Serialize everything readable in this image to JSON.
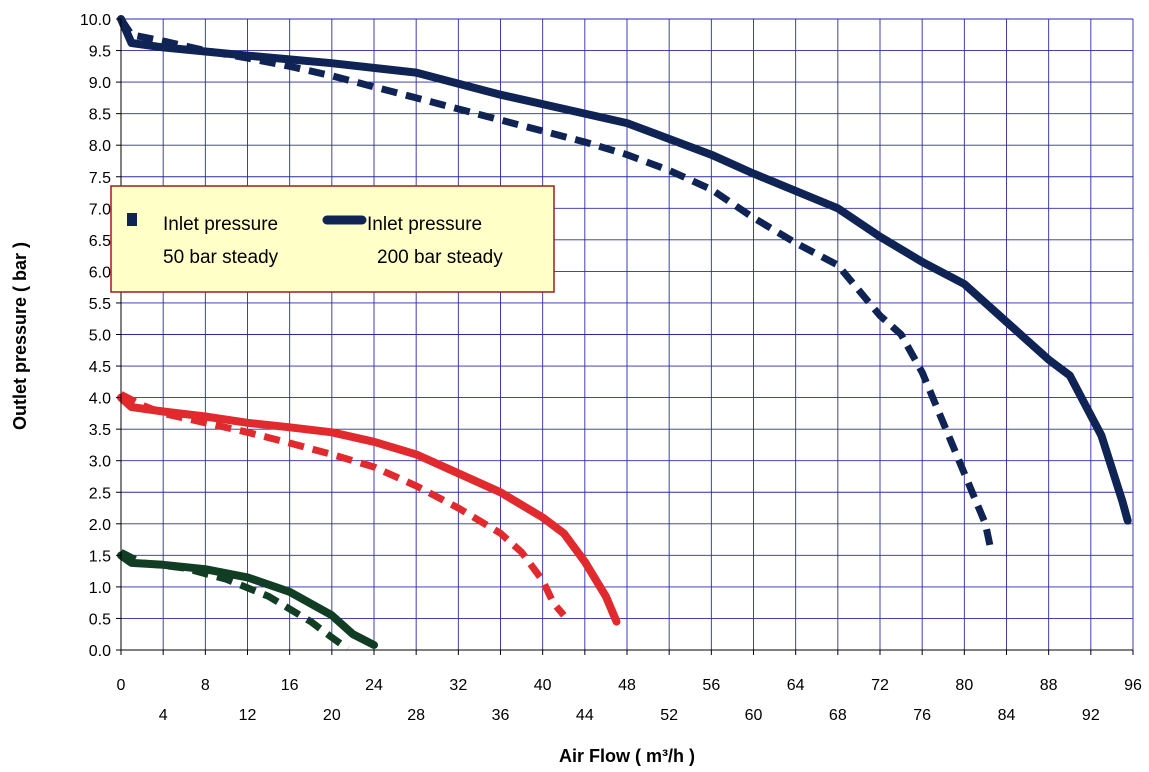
{
  "chart_data": {
    "type": "line",
    "xlabel": "Air Flow ( m³/h )",
    "ylabel": "Outlet pressure ( bar )",
    "xlim": [
      0,
      96
    ],
    "ylim": [
      0,
      10
    ],
    "grid": true,
    "x_ticks_upper": [
      "0",
      "8",
      "16",
      "24",
      "32",
      "40",
      "48",
      "56",
      "64",
      "72",
      "80",
      "88",
      "96"
    ],
    "x_ticks_lower": [
      "4",
      "12",
      "20",
      "28",
      "36",
      "44",
      "52",
      "60",
      "68",
      "76",
      "84",
      "92"
    ],
    "y_ticks": [
      "0.0",
      "0.5",
      "1.0",
      "1.5",
      "2.0",
      "2.5",
      "3.0",
      "3.5",
      "4.0",
      "4.5",
      "5.0",
      "5.5",
      "6.0",
      "6.5",
      "7.0",
      "7.5",
      "8.0",
      "8.5",
      "9.0",
      "9.5",
      "10.0"
    ],
    "legend": {
      "position": "upper-left",
      "items": [
        {
          "style": "dashed",
          "line1": "Inlet pressure",
          "line2": "50 bar steady"
        },
        {
          "style": "solid",
          "line1": "Inlet pressure",
          "line2": "200 bar steady"
        }
      ]
    },
    "series": [
      {
        "color": "#0f2454",
        "style": "solid",
        "x": [
          0,
          1,
          4,
          12,
          20,
          28,
          36,
          44,
          48,
          56,
          60,
          68,
          72,
          76,
          80,
          84,
          88,
          90,
          93,
          95,
          95.5
        ],
        "y": [
          10.0,
          9.62,
          9.55,
          9.42,
          9.3,
          9.15,
          8.8,
          8.5,
          8.35,
          7.85,
          7.55,
          7.0,
          6.55,
          6.15,
          5.8,
          5.2,
          4.6,
          4.35,
          3.4,
          2.35,
          2.05
        ]
      },
      {
        "color": "#0f2454",
        "style": "dashed",
        "x": [
          0,
          1,
          4,
          8,
          12,
          16,
          20,
          28,
          36,
          44,
          48,
          52,
          56,
          60,
          64,
          68,
          72,
          74,
          76,
          78,
          80,
          82,
          82.5
        ],
        "y": [
          10.0,
          9.75,
          9.65,
          9.5,
          9.38,
          9.25,
          9.1,
          8.75,
          8.4,
          8.05,
          7.85,
          7.6,
          7.3,
          6.85,
          6.45,
          6.1,
          5.3,
          5.0,
          4.4,
          3.6,
          2.8,
          2.0,
          1.6
        ]
      },
      {
        "color": "#e02a2e",
        "style": "solid",
        "x": [
          0,
          1,
          4,
          8,
          12,
          16,
          20,
          24,
          28,
          32,
          36,
          40,
          42,
          44,
          46,
          47
        ],
        "y": [
          4.0,
          3.85,
          3.78,
          3.7,
          3.6,
          3.53,
          3.45,
          3.3,
          3.1,
          2.8,
          2.5,
          2.1,
          1.85,
          1.4,
          0.85,
          0.45
        ]
      },
      {
        "color": "#e02a2e",
        "style": "dashed",
        "x": [
          0,
          2,
          4,
          8,
          12,
          16,
          20,
          24,
          28,
          32,
          36,
          38,
          40,
          41,
          42
        ],
        "y": [
          4.05,
          3.88,
          3.75,
          3.6,
          3.45,
          3.28,
          3.1,
          2.9,
          2.6,
          2.25,
          1.85,
          1.55,
          1.1,
          0.75,
          0.55
        ]
      },
      {
        "color": "#113d24",
        "style": "solid",
        "x": [
          0,
          1,
          4,
          8,
          12,
          16,
          20,
          22,
          24
        ],
        "y": [
          1.5,
          1.38,
          1.35,
          1.28,
          1.15,
          0.92,
          0.55,
          0.25,
          0.08
        ]
      },
      {
        "color": "#113d24",
        "style": "dashed",
        "x": [
          0,
          2,
          6,
          10,
          14,
          18,
          20,
          21.5
        ],
        "y": [
          1.55,
          1.38,
          1.3,
          1.12,
          0.85,
          0.45,
          0.2,
          0.02
        ]
      }
    ]
  }
}
